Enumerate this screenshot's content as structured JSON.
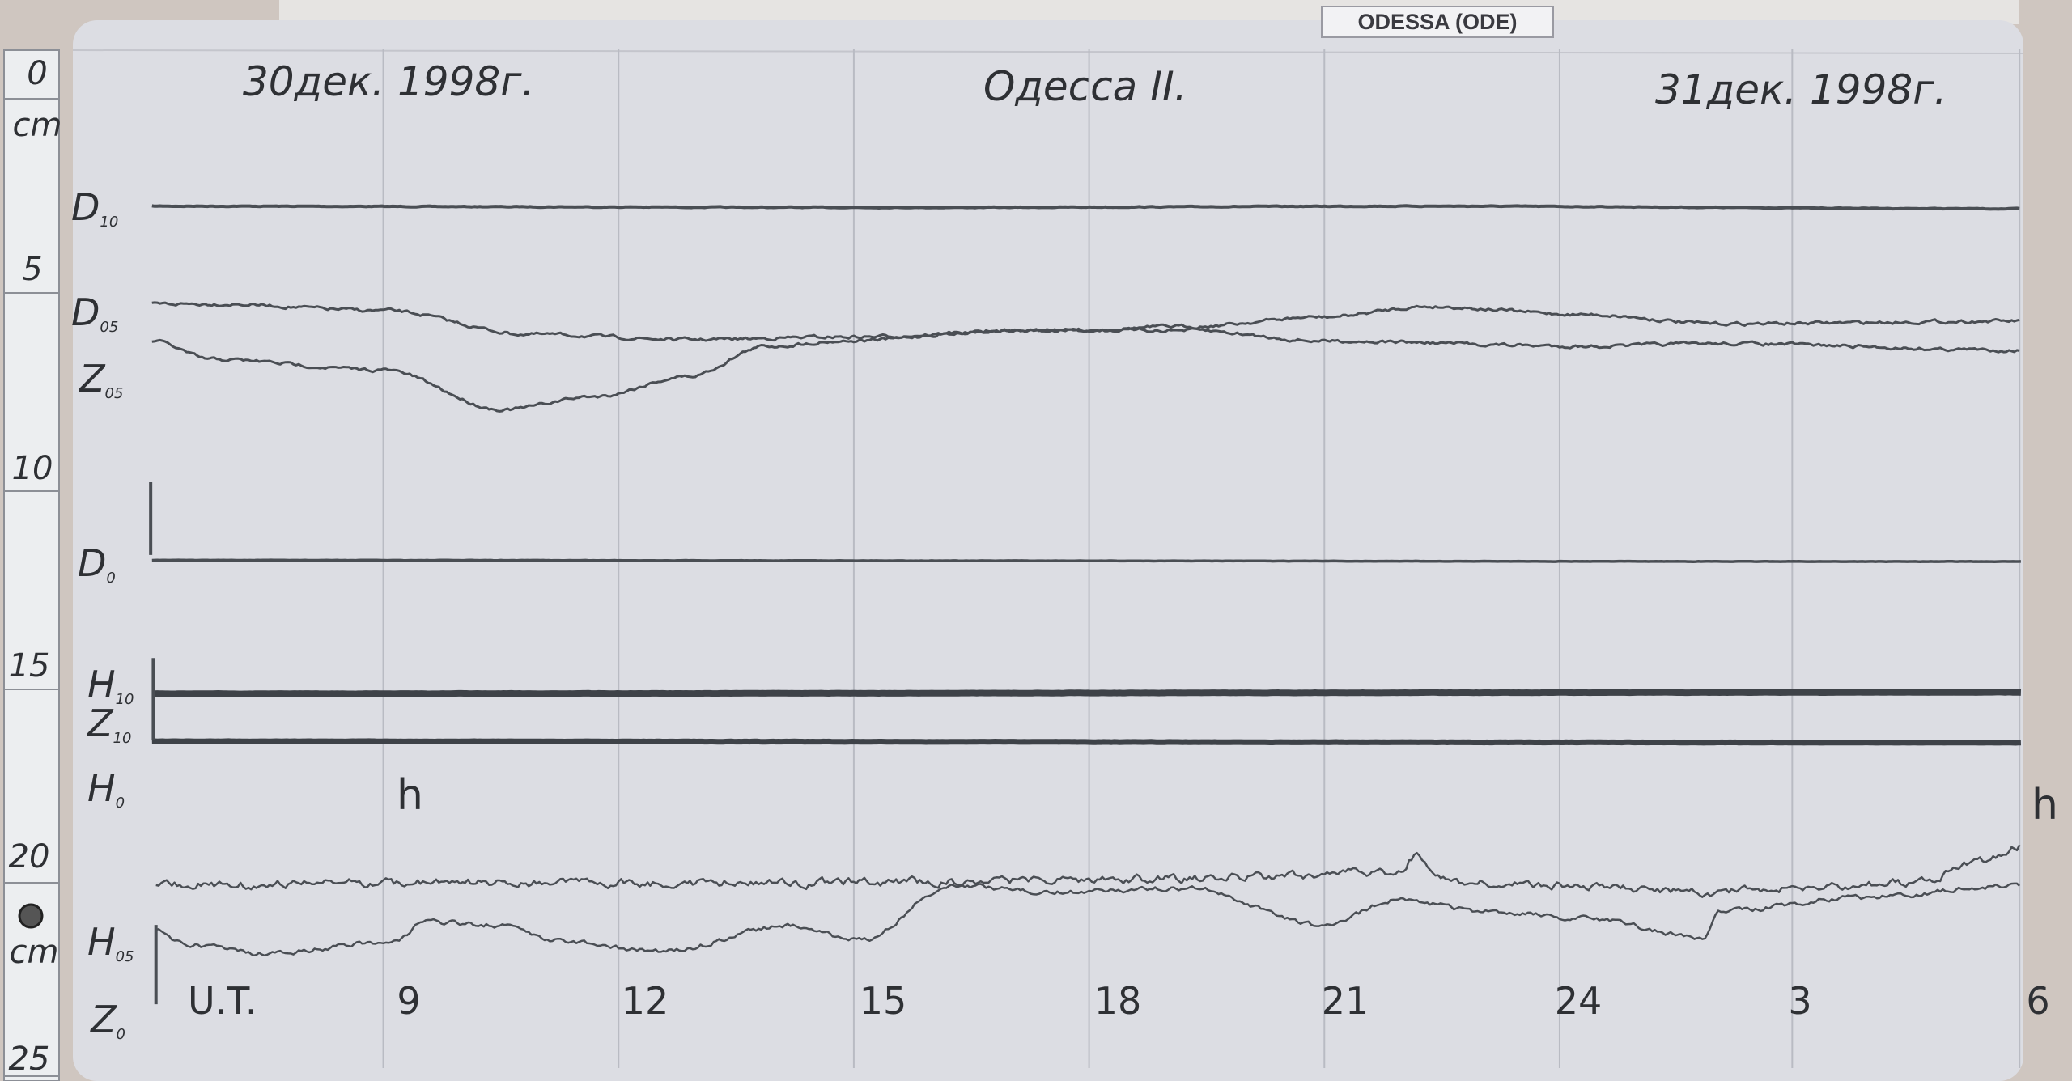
{
  "station_tag": "ODESSA (ODE)",
  "header": {
    "date_start": "30дек. 1998г.",
    "observatory": "Одесса II.",
    "date_end": "31дек. 1998г."
  },
  "ruler": {
    "labels": [
      "0",
      "cm",
      "5",
      "10",
      "15",
      "20",
      "cm",
      "25"
    ]
  },
  "traces": [
    {
      "main": "D",
      "sub": "10"
    },
    {
      "main": "D",
      "sub": "05"
    },
    {
      "main": "Z",
      "sub": "05"
    },
    {
      "main": "D",
      "sub": "0"
    },
    {
      "main": "H",
      "sub": "10"
    },
    {
      "main": "Z",
      "sub": "10"
    },
    {
      "main": "H",
      "sub": "0"
    },
    {
      "main": "H",
      "sub": "05"
    },
    {
      "main": "Z",
      "sub": "0"
    }
  ],
  "h_marks": [
    "h",
    "h"
  ],
  "time_axis": [
    "U.T.",
    "9",
    "12",
    "15",
    "18",
    "21",
    "24",
    "3",
    "6"
  ]
}
